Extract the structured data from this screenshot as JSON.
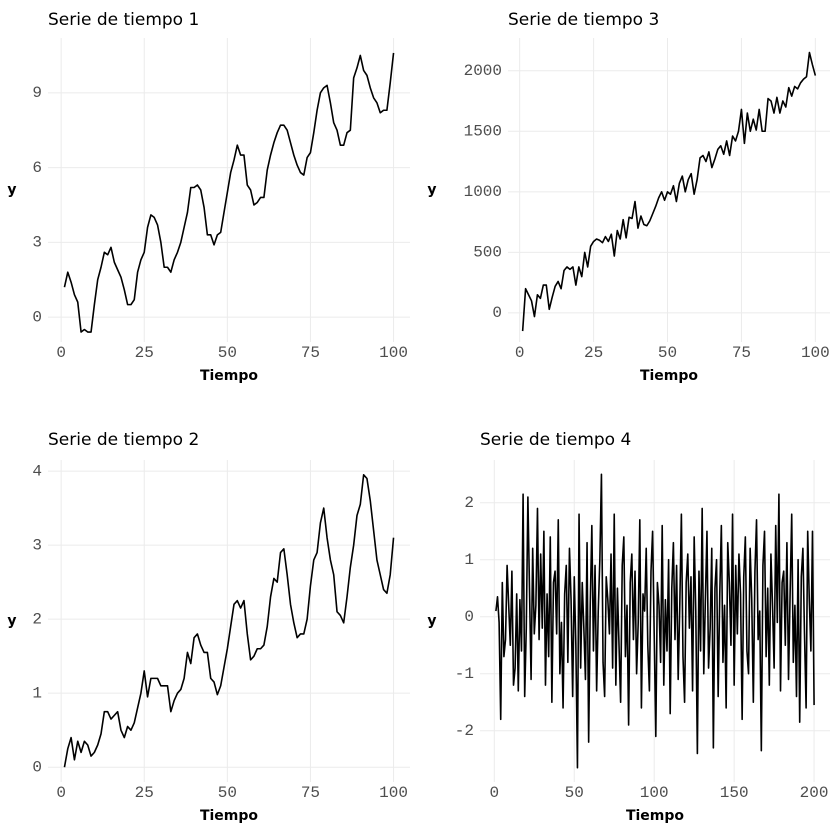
{
  "chart_data": [
    {
      "type": "line",
      "title": "Serie de tiempo 1",
      "x_label": "Tiempo",
      "y_label": "y",
      "color": "#000000",
      "grid": true,
      "xlim": [
        -3.95,
        104.95
      ],
      "ylim": [
        -1.0,
        11.2
      ],
      "xticks": [
        0,
        25,
        50,
        75,
        100
      ],
      "yticks": [
        0,
        3,
        6,
        9
      ],
      "x": [
        1,
        2,
        3,
        4,
        5,
        6,
        7,
        8,
        9,
        10,
        11,
        12,
        13,
        14,
        15,
        16,
        17,
        18,
        19,
        20,
        21,
        22,
        23,
        24,
        25,
        26,
        27,
        28,
        29,
        30,
        31,
        32,
        33,
        34,
        35,
        36,
        37,
        38,
        39,
        40,
        41,
        42,
        43,
        44,
        45,
        46,
        47,
        48,
        49,
        50,
        51,
        52,
        53,
        54,
        55,
        56,
        57,
        58,
        59,
        60,
        61,
        62,
        63,
        64,
        65,
        66,
        67,
        68,
        69,
        70,
        71,
        72,
        73,
        74,
        75,
        76,
        77,
        78,
        79,
        80,
        81,
        82,
        83,
        84,
        85,
        86,
        87,
        88,
        89,
        90,
        91,
        92,
        93,
        94,
        95,
        96,
        97,
        98,
        99,
        100
      ],
      "values": [
        1.2,
        1.8,
        1.4,
        0.9,
        0.6,
        -0.6,
        -0.5,
        -0.6,
        -0.6,
        0.5,
        1.5,
        2.0,
        2.6,
        2.5,
        2.8,
        2.2,
        1.9,
        1.6,
        1.1,
        0.5,
        0.5,
        0.7,
        1.8,
        2.3,
        2.6,
        3.6,
        4.1,
        4.0,
        3.7,
        3.0,
        2.0,
        2.0,
        1.8,
        2.3,
        2.6,
        3.0,
        3.6,
        4.2,
        5.2,
        5.2,
        5.3,
        5.1,
        4.4,
        3.3,
        3.3,
        2.9,
        3.3,
        3.4,
        4.2,
        5.0,
        5.8,
        6.3,
        6.9,
        6.5,
        6.5,
        5.3,
        5.1,
        4.5,
        4.6,
        4.8,
        4.8,
        5.9,
        6.5,
        7.0,
        7.4,
        7.7,
        7.7,
        7.5,
        7.0,
        6.5,
        6.1,
        5.8,
        5.7,
        6.4,
        6.6,
        7.4,
        8.3,
        9.0,
        9.2,
        9.3,
        8.6,
        7.8,
        7.5,
        6.9,
        6.9,
        7.4,
        7.5,
        9.6,
        10.0,
        10.5,
        9.9,
        9.7,
        9.2,
        8.8,
        8.6,
        8.2,
        8.3,
        8.3,
        9.4,
        10.6
      ]
    },
    {
      "type": "line",
      "title": "Serie de tiempo 3",
      "x_label": "Tiempo",
      "y_label": "y",
      "color": "#000000",
      "grid": true,
      "xlim": [
        -3.95,
        104.95
      ],
      "ylim": [
        -240,
        2270
      ],
      "xticks": [
        0,
        25,
        50,
        75,
        100
      ],
      "yticks": [
        0,
        500,
        1000,
        1500,
        2000
      ],
      "x": [
        1,
        2,
        3,
        4,
        5,
        6,
        7,
        8,
        9,
        10,
        11,
        12,
        13,
        14,
        15,
        16,
        17,
        18,
        19,
        20,
        21,
        22,
        23,
        24,
        25,
        26,
        27,
        28,
        29,
        30,
        31,
        32,
        33,
        34,
        35,
        36,
        37,
        38,
        39,
        40,
        41,
        42,
        43,
        44,
        45,
        46,
        47,
        48,
        49,
        50,
        51,
        52,
        53,
        54,
        55,
        56,
        57,
        58,
        59,
        60,
        61,
        62,
        63,
        64,
        65,
        66,
        67,
        68,
        69,
        70,
        71,
        72,
        73,
        74,
        75,
        76,
        77,
        78,
        79,
        80,
        81,
        82,
        83,
        84,
        85,
        86,
        87,
        88,
        89,
        90,
        91,
        92,
        93,
        94,
        95,
        96,
        97,
        98,
        99,
        100
      ],
      "values": [
        -150,
        200,
        150,
        100,
        -30,
        150,
        120,
        230,
        230,
        30,
        130,
        220,
        260,
        200,
        350,
        380,
        360,
        380,
        230,
        380,
        300,
        500,
        380,
        550,
        590,
        610,
        600,
        580,
        630,
        590,
        650,
        470,
        680,
        610,
        770,
        620,
        790,
        780,
        920,
        700,
        800,
        730,
        720,
        760,
        820,
        880,
        950,
        1000,
        930,
        1000,
        980,
        1050,
        920,
        1070,
        1130,
        1000,
        1100,
        1150,
        980,
        1100,
        1280,
        1300,
        1250,
        1330,
        1200,
        1270,
        1350,
        1380,
        1310,
        1420,
        1300,
        1460,
        1420,
        1500,
        1680,
        1400,
        1650,
        1500,
        1600,
        1510,
        1680,
        1500,
        1500,
        1770,
        1750,
        1650,
        1780,
        1650,
        1750,
        1700,
        1860,
        1790,
        1870,
        1850,
        1900,
        1930,
        1950,
        2150,
        2050,
        1960
      ]
    },
    {
      "type": "line",
      "title": "Serie de tiempo 2",
      "x_label": "Tiempo",
      "y_label": "y",
      "color": "#000000",
      "grid": true,
      "xlim": [
        -3.95,
        104.95
      ],
      "ylim": [
        -0.2,
        4.15
      ],
      "xticks": [
        0,
        25,
        50,
        75,
        100
      ],
      "yticks": [
        0,
        1,
        2,
        3,
        4
      ],
      "x": [
        1,
        2,
        3,
        4,
        5,
        6,
        7,
        8,
        9,
        10,
        11,
        12,
        13,
        14,
        15,
        16,
        17,
        18,
        19,
        20,
        21,
        22,
        23,
        24,
        25,
        26,
        27,
        28,
        29,
        30,
        31,
        32,
        33,
        34,
        35,
        36,
        37,
        38,
        39,
        40,
        41,
        42,
        43,
        44,
        45,
        46,
        47,
        48,
        49,
        50,
        51,
        52,
        53,
        54,
        55,
        56,
        57,
        58,
        59,
        60,
        61,
        62,
        63,
        64,
        65,
        66,
        67,
        68,
        69,
        70,
        71,
        72,
        73,
        74,
        75,
        76,
        77,
        78,
        79,
        80,
        81,
        82,
        83,
        84,
        85,
        86,
        87,
        88,
        89,
        90,
        91,
        92,
        93,
        94,
        95,
        96,
        97,
        98,
        99,
        100
      ],
      "values": [
        0,
        0.25,
        0.4,
        0.1,
        0.35,
        0.2,
        0.35,
        0.3,
        0.15,
        0.2,
        0.3,
        0.45,
        0.75,
        0.75,
        0.65,
        0.7,
        0.75,
        0.5,
        0.4,
        0.55,
        0.5,
        0.6,
        0.8,
        1.0,
        1.3,
        0.95,
        1.2,
        1.2,
        1.2,
        1.1,
        1.1,
        1.1,
        0.75,
        0.9,
        1.0,
        1.05,
        1.2,
        1.55,
        1.4,
        1.75,
        1.8,
        1.65,
        1.55,
        1.55,
        1.2,
        1.15,
        0.98,
        1.1,
        1.35,
        1.6,
        1.9,
        2.2,
        2.25,
        2.15,
        2.25,
        1.8,
        1.45,
        1.5,
        1.6,
        1.6,
        1.65,
        1.9,
        2.3,
        2.55,
        2.5,
        2.9,
        2.95,
        2.6,
        2.2,
        1.95,
        1.75,
        1.8,
        1.8,
        2.0,
        2.45,
        2.8,
        2.9,
        3.3,
        3.5,
        3.1,
        2.8,
        2.6,
        2.1,
        2.05,
        1.95,
        2.3,
        2.7,
        3.0,
        3.4,
        3.55,
        3.95,
        3.9,
        3.6,
        3.2,
        2.8,
        2.6,
        2.4,
        2.35,
        2.6,
        3.1
      ]
    },
    {
      "type": "line",
      "title": "Serie de tiempo 4",
      "x_label": "Tiempo",
      "y_label": "y",
      "color": "#000000",
      "grid": true,
      "xlim": [
        -8.95,
        209.95
      ],
      "ylim": [
        -2.9,
        2.75
      ],
      "xticks": [
        0,
        50,
        100,
        150,
        200
      ],
      "yticks": [
        -2,
        -1,
        0,
        1,
        2
      ],
      "x": [
        1,
        2,
        3,
        4,
        5,
        6,
        7,
        8,
        9,
        10,
        11,
        12,
        13,
        14,
        15,
        16,
        17,
        18,
        19,
        20,
        21,
        22,
        23,
        24,
        25,
        26,
        27,
        28,
        29,
        30,
        31,
        32,
        33,
        34,
        35,
        36,
        37,
        38,
        39,
        40,
        41,
        42,
        43,
        44,
        45,
        46,
        47,
        48,
        49,
        50,
        51,
        52,
        53,
        54,
        55,
        56,
        57,
        58,
        59,
        60,
        61,
        62,
        63,
        64,
        65,
        66,
        67,
        68,
        69,
        70,
        71,
        72,
        73,
        74,
        75,
        76,
        77,
        78,
        79,
        80,
        81,
        82,
        83,
        84,
        85,
        86,
        87,
        88,
        89,
        90,
        91,
        92,
        93,
        94,
        95,
        96,
        97,
        98,
        99,
        100,
        101,
        102,
        103,
        104,
        105,
        106,
        107,
        108,
        109,
        110,
        111,
        112,
        113,
        114,
        115,
        116,
        117,
        118,
        119,
        120,
        121,
        122,
        123,
        124,
        125,
        126,
        127,
        128,
        129,
        130,
        131,
        132,
        133,
        134,
        135,
        136,
        137,
        138,
        139,
        140,
        141,
        142,
        143,
        144,
        145,
        146,
        147,
        148,
        149,
        150,
        151,
        152,
        153,
        154,
        155,
        156,
        157,
        158,
        159,
        160,
        161,
        162,
        163,
        164,
        165,
        166,
        167,
        168,
        169,
        170,
        171,
        172,
        173,
        174,
        175,
        176,
        177,
        178,
        179,
        180,
        181,
        182,
        183,
        184,
        185,
        186,
        187,
        188,
        189,
        190,
        191,
        192,
        193,
        194,
        195,
        196,
        197,
        198,
        199,
        200
      ],
      "values": [
        0.1,
        0.35,
        -0.1,
        -1.8,
        0.6,
        -0.7,
        -0.4,
        0.9,
        0.2,
        -0.5,
        0.8,
        -1.2,
        -0.9,
        0.4,
        -1.3,
        0.3,
        -0.6,
        2.15,
        -1.4,
        -0.2,
        2.1,
        0.5,
        -1.1,
        1.2,
        -0.3,
        0.2,
        1.9,
        -0.4,
        1.1,
        -0.2,
        1.5,
        -1.2,
        0.4,
        -0.7,
        1.4,
        -1.5,
        0.6,
        0.8,
        -0.3,
        1.7,
        -1.0,
        -0.1,
        -1.6,
        0.4,
        0.9,
        -0.8,
        1.2,
        0.3,
        -1.4,
        0.7,
        -0.5,
        -2.65,
        1.8,
        -0.9,
        0.6,
        -0.2,
        -1.1,
        1.3,
        -2.2,
        0.2,
        1.6,
        -0.6,
        0.9,
        -1.3,
        0.1,
        1.0,
        2.5,
        -0.8,
        -1.4,
        0.7,
        0.3,
        -0.3,
        1.1,
        -0.9,
        1.8,
        -1.2,
        0.5,
        -0.5,
        -1.5,
        0.9,
        1.4,
        -0.7,
        0.2,
        -1.9,
        0.6,
        1.1,
        -0.4,
        0.8,
        -1.0,
        -0.1,
        1.7,
        -1.6,
        0.4,
        0.1,
        1.2,
        -0.5,
        -1.3,
        0.8,
        1.5,
        -0.3,
        -2.1,
        0.6,
        0.2,
        -0.8,
        1.6,
        -1.2,
        0.3,
        -0.6,
        1.0,
        -1.7,
        0.5,
        1.3,
        -0.4,
        0.9,
        -1.1,
        0.2,
        1.8,
        -0.7,
        -1.5,
        0.6,
        1.1,
        -0.2,
        0.7,
        -1.3,
        1.4,
        0.1,
        -2.4,
        0.8,
        -0.6,
        1.9,
        -1.0,
        0.3,
        1.5,
        -0.9,
        -0.2,
        1.2,
        -2.3,
        0.5,
        1.0,
        -1.4,
        0.4,
        1.6,
        -0.8,
        0.2,
        -1.6,
        1.3,
        0.6,
        -0.5,
        1.8,
        -1.2,
        0.9,
        -0.3,
        1.1,
        0.4,
        -1.8,
        0.7,
        1.4,
        -0.6,
        -1.0,
        1.2,
        0.3,
        -1.5,
        0.8,
        1.7,
        -0.4,
        0.1,
        -2.35,
        0.9,
        1.5,
        -0.7,
        0.5,
        -1.2,
        1.1,
        0.2,
        -0.9,
        1.6,
        -0.1,
        2.15,
        -1.3,
        0.6,
        0.8,
        -0.5,
        1.3,
        -1.1,
        0.4,
        1.8,
        -0.8,
        0.2,
        -1.4,
        1.0,
        -1.85,
        0.7,
        1.2,
        -0.3,
        -1.6,
        1.5,
        0.3,
        -0.6,
        1.5,
        -1.55
      ]
    }
  ]
}
